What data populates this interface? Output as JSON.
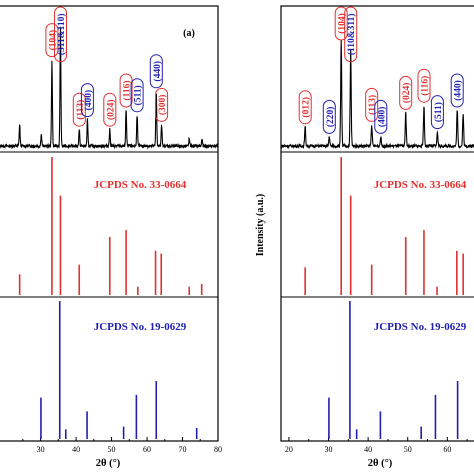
{
  "chart_data": [
    {
      "type": "line",
      "id": "left",
      "panel_tag": "(a)",
      "xlabel": "2θ (°)",
      "ylabel": "",
      "xlim": [
        18,
        80
      ],
      "x_ticks": [
        "30",
        "40",
        "50",
        "60",
        "70",
        "80"
      ],
      "x_tick_values": [
        30,
        40,
        50,
        60,
        70,
        80
      ],
      "colors": {
        "hematite": "#e03030",
        "spinel": "#2020b0",
        "pattern": "#000000"
      },
      "pattern_peaks": [
        {
          "x": 24.1,
          "h": 0.18
        },
        {
          "x": 30.2,
          "h": 0.1
        },
        {
          "x": 33.2,
          "h": 0.72
        },
        {
          "x": 35.6,
          "h": 1.0
        },
        {
          "x": 40.9,
          "h": 0.14
        },
        {
          "x": 43.2,
          "h": 0.22
        },
        {
          "x": 49.5,
          "h": 0.14
        },
        {
          "x": 54.1,
          "h": 0.3
        },
        {
          "x": 57.2,
          "h": 0.26
        },
        {
          "x": 62.6,
          "h": 0.46
        },
        {
          "x": 64.1,
          "h": 0.18
        },
        {
          "x": 71.9,
          "h": 0.06
        },
        {
          "x": 75.5,
          "h": 0.05
        }
      ],
      "annotations": [
        {
          "text": "(104)",
          "x": 33.2,
          "color": "hematite"
        },
        {
          "text": "(311&110)",
          "x": 35.6,
          "color": "mixed"
        },
        {
          "text": "(113)",
          "x": 40.9,
          "color": "hematite"
        },
        {
          "text": "(400)",
          "x": 43.2,
          "color": "spinel"
        },
        {
          "text": "(024)",
          "x": 49.5,
          "color": "hematite"
        },
        {
          "text": "(116)",
          "x": 54.1,
          "color": "hematite"
        },
        {
          "text": "(511)",
          "x": 57.2,
          "color": "spinel"
        },
        {
          "text": "(440)",
          "x": 62.6,
          "color": "spinel"
        },
        {
          "text": "(300)",
          "x": 64.1,
          "color": "hematite"
        }
      ],
      "reference_1": {
        "label": "JCPDS No. 33-0664",
        "color": "hematite",
        "lines": [
          {
            "x": 24.1,
            "h": 0.15
          },
          {
            "x": 33.2,
            "h": 1.0
          },
          {
            "x": 35.6,
            "h": 0.72
          },
          {
            "x": 40.9,
            "h": 0.22
          },
          {
            "x": 49.5,
            "h": 0.42
          },
          {
            "x": 54.1,
            "h": 0.47
          },
          {
            "x": 57.4,
            "h": 0.06
          },
          {
            "x": 62.4,
            "h": 0.32
          },
          {
            "x": 64.0,
            "h": 0.3
          },
          {
            "x": 71.9,
            "h": 0.06
          },
          {
            "x": 75.4,
            "h": 0.08
          }
        ]
      },
      "reference_2": {
        "label": "JCPDS No. 19-0629",
        "color": "spinel",
        "lines": [
          {
            "x": 18.3,
            "h": 0.08
          },
          {
            "x": 30.1,
            "h": 0.3
          },
          {
            "x": 35.4,
            "h": 1.0
          },
          {
            "x": 37.1,
            "h": 0.07
          },
          {
            "x": 43.1,
            "h": 0.2
          },
          {
            "x": 53.4,
            "h": 0.09
          },
          {
            "x": 57.0,
            "h": 0.32
          },
          {
            "x": 62.6,
            "h": 0.42
          },
          {
            "x": 74.0,
            "h": 0.08
          }
        ]
      }
    },
    {
      "type": "line",
      "id": "right",
      "xlabel": "2θ (°)",
      "ylabel": "Intensity (a.u.)",
      "xlim": [
        18,
        68
      ],
      "x_ticks": [
        "20",
        "30",
        "40",
        "50",
        "60"
      ],
      "x_tick_values": [
        20,
        30,
        40,
        50,
        60
      ],
      "colors": {
        "hematite": "#e03030",
        "spinel": "#2020b0",
        "pattern": "#000000"
      },
      "pattern_peaks": [
        {
          "x": 24.1,
          "h": 0.16
        },
        {
          "x": 30.2,
          "h": 0.08
        },
        {
          "x": 33.2,
          "h": 0.88
        },
        {
          "x": 35.6,
          "h": 0.8
        },
        {
          "x": 40.9,
          "h": 0.18
        },
        {
          "x": 43.2,
          "h": 0.08
        },
        {
          "x": 49.5,
          "h": 0.28
        },
        {
          "x": 54.1,
          "h": 0.34
        },
        {
          "x": 57.5,
          "h": 0.12
        },
        {
          "x": 62.5,
          "h": 0.3
        },
        {
          "x": 64.0,
          "h": 0.26
        }
      ],
      "annotations": [
        {
          "text": "(012)",
          "x": 24.1,
          "color": "hematite"
        },
        {
          "text": "(220)",
          "x": 30.2,
          "color": "spinel"
        },
        {
          "text": "(104)",
          "x": 33.2,
          "color": "hematite"
        },
        {
          "text": "(110&311)",
          "x": 35.6,
          "color": "mixed"
        },
        {
          "text": "(113)",
          "x": 40.9,
          "color": "hematite"
        },
        {
          "text": "(400)",
          "x": 43.2,
          "color": "spinel"
        },
        {
          "text": "(024)",
          "x": 49.5,
          "color": "hematite"
        },
        {
          "text": "(116)",
          "x": 54.1,
          "color": "hematite"
        },
        {
          "text": "(511)",
          "x": 57.5,
          "color": "spinel"
        },
        {
          "text": "(440)",
          "x": 62.5,
          "color": "spinel"
        }
      ],
      "reference_1": {
        "label": "JCPDS No. 33-0664",
        "color": "hematite",
        "lines": [
          {
            "x": 24.1,
            "h": 0.2
          },
          {
            "x": 33.2,
            "h": 1.0
          },
          {
            "x": 35.6,
            "h": 0.72
          },
          {
            "x": 40.9,
            "h": 0.22
          },
          {
            "x": 49.5,
            "h": 0.42
          },
          {
            "x": 54.1,
            "h": 0.47
          },
          {
            "x": 57.4,
            "h": 0.06
          },
          {
            "x": 62.4,
            "h": 0.32
          },
          {
            "x": 64.0,
            "h": 0.3
          }
        ]
      },
      "reference_2": {
        "label": "JCPDS No. 19-0629",
        "color": "spinel",
        "lines": [
          {
            "x": 30.1,
            "h": 0.3
          },
          {
            "x": 35.4,
            "h": 1.0
          },
          {
            "x": 37.1,
            "h": 0.07
          },
          {
            "x": 43.1,
            "h": 0.2
          },
          {
            "x": 53.4,
            "h": 0.09
          },
          {
            "x": 57.0,
            "h": 0.32
          },
          {
            "x": 62.6,
            "h": 0.42
          }
        ]
      }
    }
  ]
}
